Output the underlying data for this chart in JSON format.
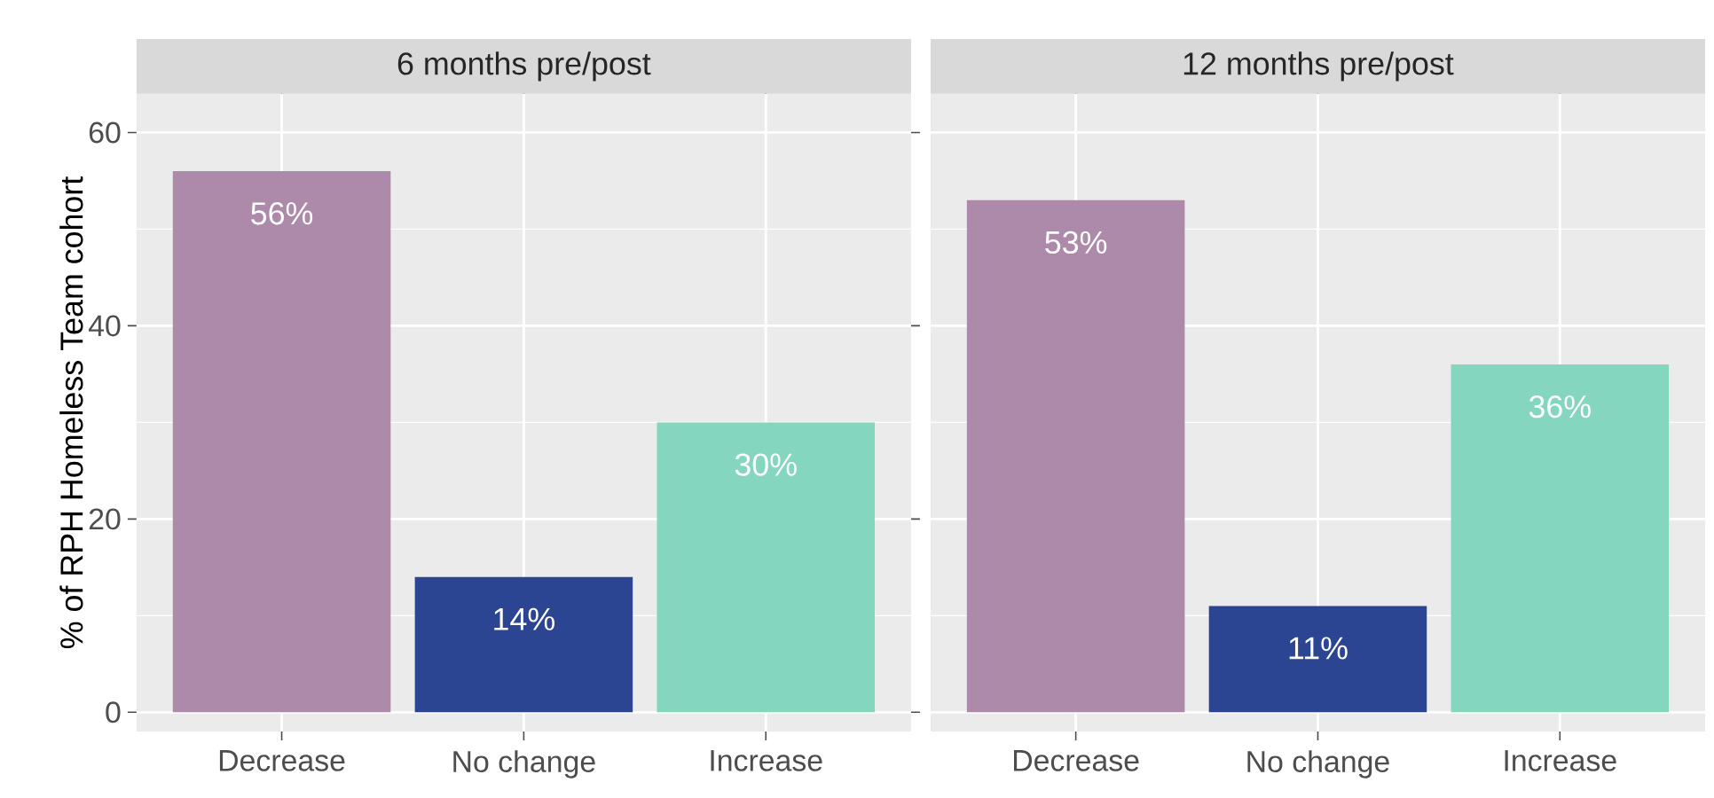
{
  "chart_data": [
    {
      "type": "bar",
      "title": "6 months pre/post",
      "ylabel": "% of RPH Homeless Team cohort",
      "categories": [
        "Decrease",
        "No change",
        "Increase"
      ],
      "values": [
        56,
        14,
        30
      ],
      "colors": [
        "#ad89aa",
        "#2c4593",
        "#84d6be"
      ],
      "value_labels": [
        "56%",
        "14%",
        "30%"
      ],
      "ylim": [
        -2,
        64
      ],
      "yticks": [
        0,
        20,
        40,
        60
      ],
      "grid": true
    },
    {
      "type": "bar",
      "title": "12 months pre/post",
      "categories": [
        "Decrease",
        "No change",
        "Increase"
      ],
      "values": [
        53,
        11,
        36
      ],
      "colors": [
        "#ad89aa",
        "#2c4593",
        "#84d6be"
      ],
      "value_labels": [
        "53%",
        "11%",
        "36%"
      ],
      "ylim": [
        -2,
        64
      ],
      "yticks": [
        0,
        20,
        40,
        60
      ],
      "grid": true,
      "tick_labels": "x"
    }
  ]
}
